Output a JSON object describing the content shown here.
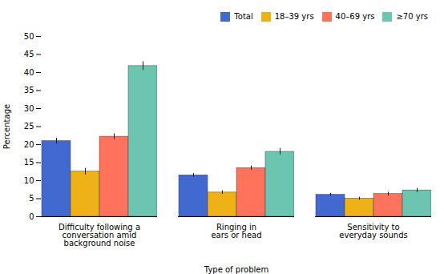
{
  "chart_data": {
    "type": "bar",
    "categories": [
      "Difficulty following a\nconversation amid\nbackground noise",
      "Ringing in\nears or head",
      "Sensitivity to\neveryday sounds"
    ],
    "series": [
      {
        "name": "Total",
        "values": [
          21.0,
          11.5,
          6.1
        ],
        "errors": [
          0.8,
          0.5,
          0.4
        ]
      },
      {
        "name": "18–39 yrs",
        "values": [
          12.5,
          6.7,
          5.0
        ],
        "errors": [
          0.9,
          0.5,
          0.4
        ]
      },
      {
        "name": "40–69 yrs",
        "values": [
          22.2,
          13.5,
          6.3
        ],
        "errors": [
          0.8,
          0.6,
          0.5
        ]
      },
      {
        "name": "≥70 yrs",
        "values": [
          41.8,
          18.0,
          7.3
        ],
        "errors": [
          1.2,
          0.9,
          0.6
        ]
      }
    ],
    "xlabel": "Type of problem",
    "ylabel": "Percentage",
    "ylim": [
      0,
      50
    ],
    "yticks": [
      0,
      5,
      10,
      15,
      20,
      25,
      30,
      35,
      40,
      45,
      50
    ],
    "grid": false,
    "legend": "upper right"
  }
}
